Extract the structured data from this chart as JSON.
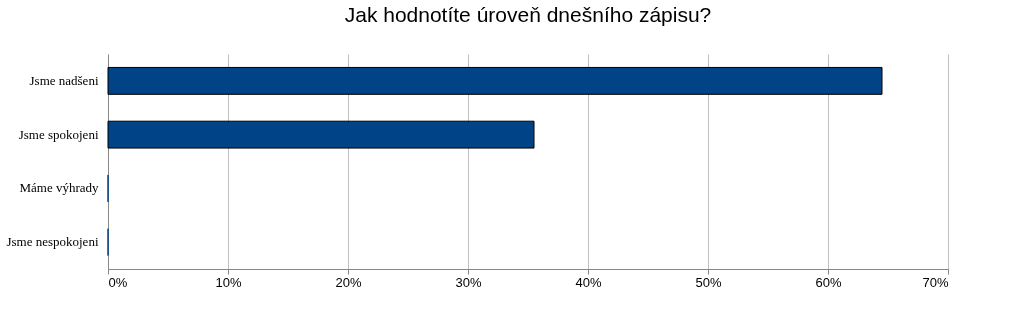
{
  "chart_data": {
    "type": "bar",
    "orientation": "horizontal",
    "title": "Jak hodnotíte úroveň dnešního zápisu?",
    "categories": [
      "Jsme nadšeni",
      "Jsme spokojeni",
      "Máme výhrady",
      "Jsme nespokojeni"
    ],
    "values": [
      64.5,
      35.5,
      0,
      0
    ],
    "color": "#004386",
    "xlim": [
      0,
      70
    ],
    "xticks": [
      {
        "value": 0,
        "label": "0%"
      },
      {
        "value": 10,
        "label": "10%"
      },
      {
        "value": 20,
        "label": "20%"
      },
      {
        "value": 30,
        "label": "30%"
      },
      {
        "value": 40,
        "label": "40%"
      },
      {
        "value": 50,
        "label": "50%"
      },
      {
        "value": 60,
        "label": "60%"
      },
      {
        "value": 70,
        "label": "70%"
      }
    ],
    "grid": "x"
  }
}
